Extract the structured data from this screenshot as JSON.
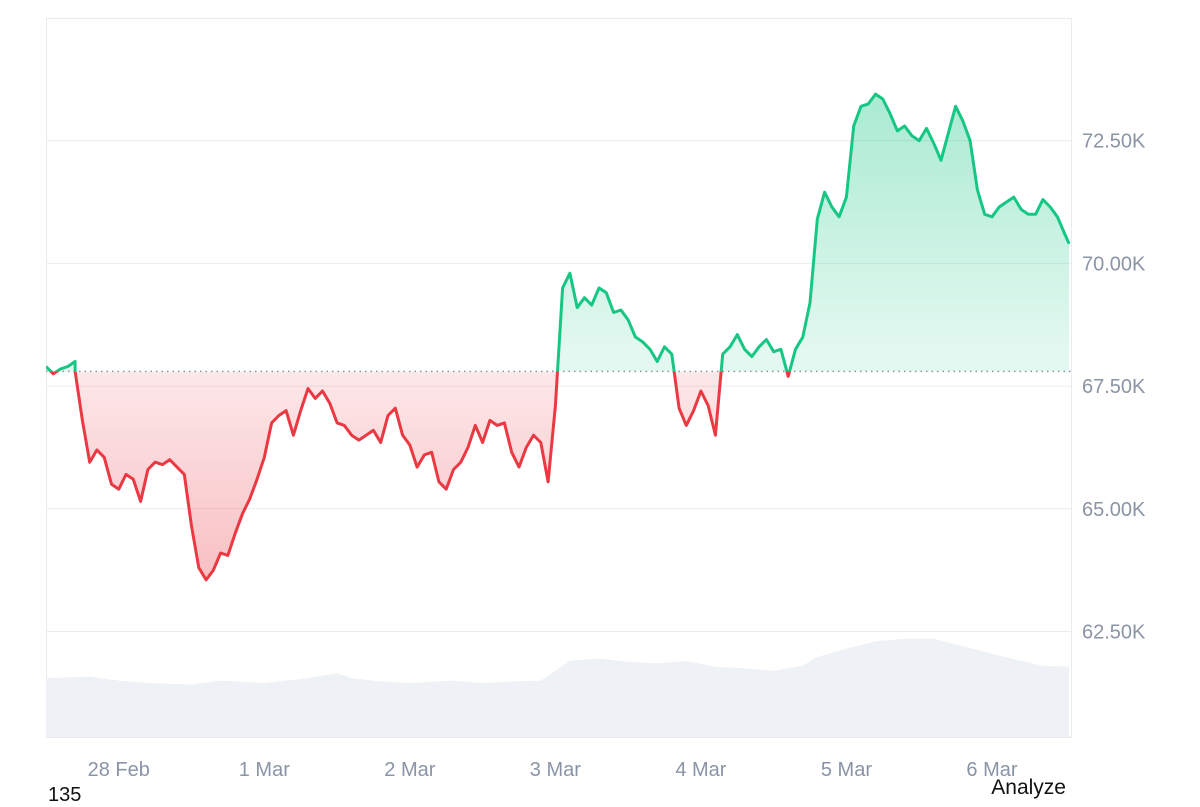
{
  "chart_data": {
    "type": "area",
    "title": "",
    "xlabel": "",
    "ylabel": "",
    "baseline": 67800,
    "ylim": [
      60350,
      75000
    ],
    "yticks": [
      {
        "value": 62500,
        "label": "62.50K"
      },
      {
        "value": 65000,
        "label": "65.00K"
      },
      {
        "value": 67500,
        "label": "67.50K"
      },
      {
        "value": 70000,
        "label": "70.00K"
      },
      {
        "value": 72500,
        "label": "72.50K"
      }
    ],
    "xlim": [
      -0.5,
      6.55
    ],
    "xticks": [
      {
        "value": 0,
        "label": "28 Feb"
      },
      {
        "value": 1,
        "label": "1 Mar"
      },
      {
        "value": 2,
        "label": "2 Mar"
      },
      {
        "value": 3,
        "label": "3 Mar"
      },
      {
        "value": 4,
        "label": "4 Mar"
      },
      {
        "value": 5,
        "label": "5 Mar"
      },
      {
        "value": 6,
        "label": "6 Mar"
      }
    ],
    "colors": {
      "up": "#16c784",
      "down": "#ea3943",
      "volume": "#eef1f5",
      "grid": "#e9ecef"
    },
    "grid": true,
    "legend": "none",
    "price": [
      [
        -0.5,
        67900
      ],
      [
        -0.45,
        67750
      ],
      [
        -0.4,
        67850
      ],
      [
        -0.35,
        67900
      ],
      [
        -0.3,
        68000
      ],
      [
        -0.3,
        67800
      ],
      [
        -0.25,
        66800
      ],
      [
        -0.2,
        65950
      ],
      [
        -0.15,
        66200
      ],
      [
        -0.1,
        66050
      ],
      [
        -0.05,
        65500
      ],
      [
        0.0,
        65400
      ],
      [
        0.05,
        65700
      ],
      [
        0.1,
        65600
      ],
      [
        0.15,
        65150
      ],
      [
        0.2,
        65800
      ],
      [
        0.25,
        65950
      ],
      [
        0.3,
        65900
      ],
      [
        0.35,
        66000
      ],
      [
        0.4,
        65850
      ],
      [
        0.45,
        65700
      ],
      [
        0.5,
        64650
      ],
      [
        0.55,
        63800
      ],
      [
        0.6,
        63550
      ],
      [
        0.65,
        63750
      ],
      [
        0.7,
        64100
      ],
      [
        0.75,
        64050
      ],
      [
        0.8,
        64500
      ],
      [
        0.85,
        64900
      ],
      [
        0.9,
        65200
      ],
      [
        0.95,
        65600
      ],
      [
        1.0,
        66050
      ],
      [
        1.05,
        66750
      ],
      [
        1.1,
        66900
      ],
      [
        1.15,
        67000
      ],
      [
        1.2,
        66500
      ],
      [
        1.25,
        67000
      ],
      [
        1.3,
        67450
      ],
      [
        1.35,
        67250
      ],
      [
        1.4,
        67400
      ],
      [
        1.45,
        67150
      ],
      [
        1.5,
        66750
      ],
      [
        1.55,
        66700
      ],
      [
        1.6,
        66500
      ],
      [
        1.65,
        66400
      ],
      [
        1.7,
        66500
      ],
      [
        1.75,
        66600
      ],
      [
        1.8,
        66350
      ],
      [
        1.85,
        66900
      ],
      [
        1.9,
        67050
      ],
      [
        1.95,
        66500
      ],
      [
        2.0,
        66300
      ],
      [
        2.05,
        65850
      ],
      [
        2.1,
        66100
      ],
      [
        2.15,
        66150
      ],
      [
        2.2,
        65550
      ],
      [
        2.25,
        65400
      ],
      [
        2.3,
        65800
      ],
      [
        2.35,
        65950
      ],
      [
        2.4,
        66250
      ],
      [
        2.45,
        66700
      ],
      [
        2.5,
        66350
      ],
      [
        2.55,
        66800
      ],
      [
        2.6,
        66700
      ],
      [
        2.65,
        66750
      ],
      [
        2.7,
        66150
      ],
      [
        2.75,
        65850
      ],
      [
        2.8,
        66250
      ],
      [
        2.85,
        66500
      ],
      [
        2.9,
        66350
      ],
      [
        2.95,
        65550
      ],
      [
        3.0,
        67100
      ],
      [
        3.05,
        69500
      ],
      [
        3.1,
        69800
      ],
      [
        3.15,
        69100
      ],
      [
        3.2,
        69300
      ],
      [
        3.25,
        69150
      ],
      [
        3.3,
        69500
      ],
      [
        3.35,
        69400
      ],
      [
        3.4,
        69000
      ],
      [
        3.45,
        69050
      ],
      [
        3.5,
        68850
      ],
      [
        3.55,
        68500
      ],
      [
        3.6,
        68400
      ],
      [
        3.65,
        68250
      ],
      [
        3.7,
        68000
      ],
      [
        3.75,
        68300
      ],
      [
        3.8,
        68150
      ],
      [
        3.85,
        67050
      ],
      [
        3.9,
        66700
      ],
      [
        3.95,
        67000
      ],
      [
        4.0,
        67400
      ],
      [
        4.05,
        67100
      ],
      [
        4.1,
        66500
      ],
      [
        4.15,
        68150
      ],
      [
        4.2,
        68300
      ],
      [
        4.25,
        68550
      ],
      [
        4.3,
        68250
      ],
      [
        4.35,
        68100
      ],
      [
        4.4,
        68300
      ],
      [
        4.45,
        68450
      ],
      [
        4.5,
        68200
      ],
      [
        4.55,
        68250
      ],
      [
        4.6,
        67700
      ],
      [
        4.65,
        68250
      ],
      [
        4.7,
        68500
      ],
      [
        4.75,
        69200
      ],
      [
        4.8,
        70900
      ],
      [
        4.85,
        71450
      ],
      [
        4.9,
        71150
      ],
      [
        4.95,
        70950
      ],
      [
        5.0,
        71350
      ],
      [
        5.05,
        72800
      ],
      [
        5.1,
        73200
      ],
      [
        5.15,
        73250
      ],
      [
        5.2,
        73450
      ],
      [
        5.25,
        73350
      ],
      [
        5.3,
        73050
      ],
      [
        5.35,
        72700
      ],
      [
        5.4,
        72800
      ],
      [
        5.45,
        72600
      ],
      [
        5.5,
        72500
      ],
      [
        5.55,
        72750
      ],
      [
        5.6,
        72450
      ],
      [
        5.65,
        72100
      ],
      [
        5.7,
        72650
      ],
      [
        5.75,
        73200
      ],
      [
        5.8,
        72900
      ],
      [
        5.85,
        72500
      ],
      [
        5.9,
        71500
      ],
      [
        5.95,
        71000
      ],
      [
        6.0,
        70950
      ],
      [
        6.05,
        71150
      ],
      [
        6.1,
        71250
      ],
      [
        6.15,
        71350
      ],
      [
        6.2,
        71100
      ],
      [
        6.25,
        71000
      ],
      [
        6.3,
        71000
      ],
      [
        6.35,
        71300
      ],
      [
        6.4,
        71150
      ],
      [
        6.45,
        70950
      ],
      [
        6.5,
        70600
      ],
      [
        6.53,
        70400
      ]
    ],
    "volume": [
      [
        -0.5,
        61550
      ],
      [
        -0.2,
        61580
      ],
      [
        0.0,
        61500
      ],
      [
        0.2,
        61450
      ],
      [
        0.5,
        61420
      ],
      [
        0.7,
        61500
      ],
      [
        1.0,
        61450
      ],
      [
        1.3,
        61550
      ],
      [
        1.5,
        61650
      ],
      [
        1.6,
        61550
      ],
      [
        1.8,
        61480
      ],
      [
        2.0,
        61450
      ],
      [
        2.3,
        61500
      ],
      [
        2.5,
        61450
      ],
      [
        2.7,
        61480
      ],
      [
        2.9,
        61500
      ],
      [
        3.0,
        61700
      ],
      [
        3.1,
        61900
      ],
      [
        3.3,
        61950
      ],
      [
        3.5,
        61880
      ],
      [
        3.7,
        61850
      ],
      [
        3.9,
        61900
      ],
      [
        4.1,
        61780
      ],
      [
        4.3,
        61750
      ],
      [
        4.5,
        61700
      ],
      [
        4.7,
        61800
      ],
      [
        4.8,
        61980
      ],
      [
        5.0,
        62150
      ],
      [
        5.2,
        62300
      ],
      [
        5.4,
        62350
      ],
      [
        5.6,
        62350
      ],
      [
        5.8,
        62200
      ],
      [
        6.0,
        62050
      ],
      [
        6.2,
        61900
      ],
      [
        6.35,
        61800
      ],
      [
        6.53,
        61780
      ]
    ]
  },
  "footer": {
    "left_label": "135",
    "right_label": "Analyze"
  }
}
